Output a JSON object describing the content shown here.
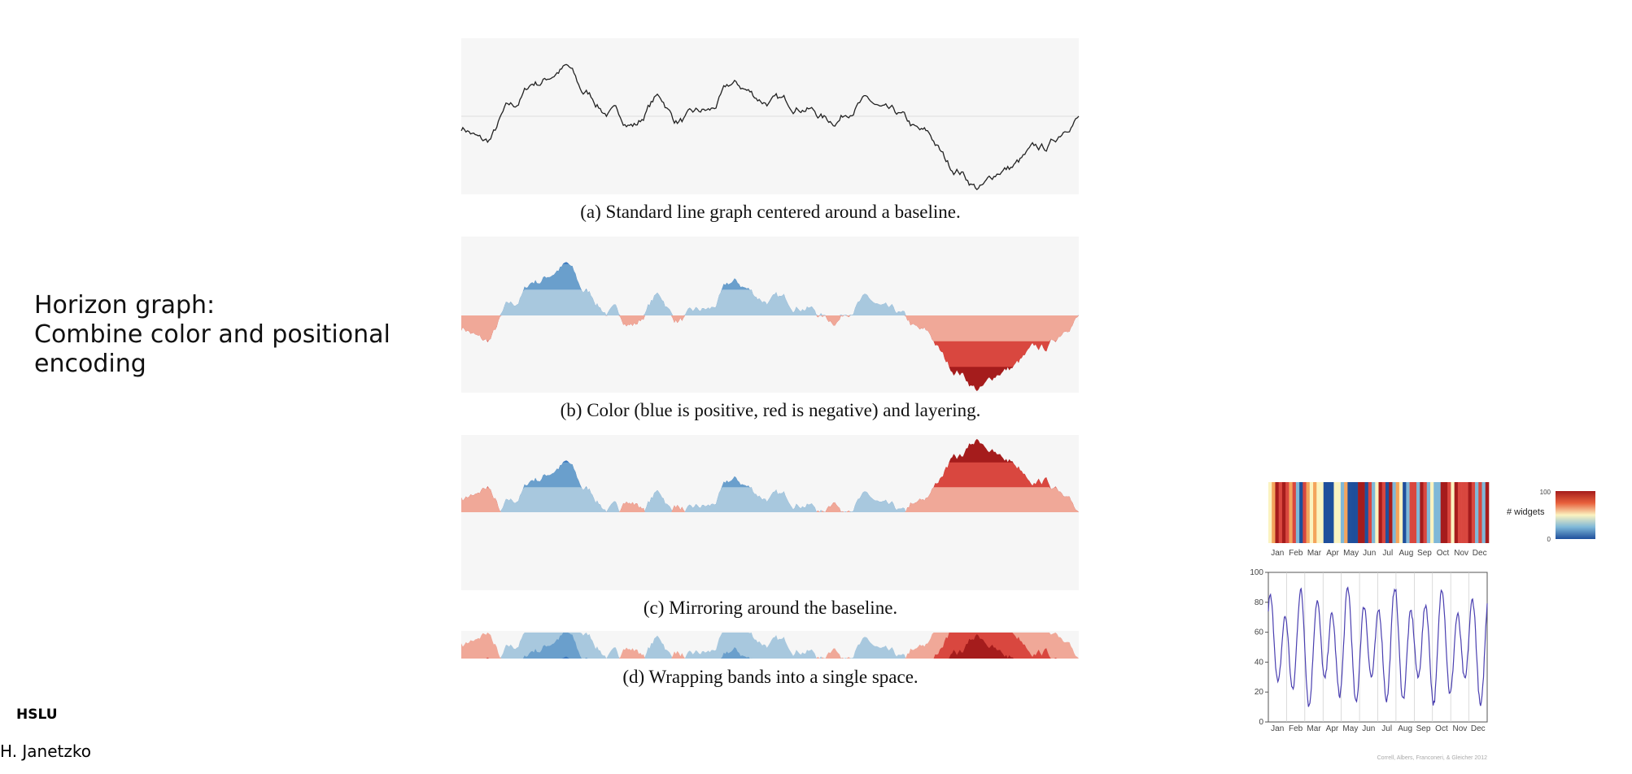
{
  "slide": {
    "text": [
      "Horizon graph:",
      "Combine color and positional",
      "encoding"
    ],
    "footer": {
      "org": "HSLU",
      "author": "H. Janetzko"
    }
  },
  "figure": {
    "captions": [
      "(a)  Standard line graph centered around a baseline.",
      "(b)  Color (blue is positive, red is negative) and layering.",
      "(c)  Mirroring around the baseline.",
      "(d)  Wrapping bands into a single space."
    ]
  },
  "inset": {
    "months": [
      "Jan",
      "Feb",
      "Mar",
      "Apr",
      "May",
      "Jun",
      "Jul",
      "Aug",
      "Sep",
      "Oct",
      "Nov",
      "Dec"
    ],
    "legend_label": "# widgets",
    "legend_max": 100,
    "legend_min": 0,
    "ylim": [
      0,
      100
    ],
    "yticks": [
      0,
      20,
      40,
      60,
      80,
      100
    ],
    "credit": "Correll, Albers, Franconeri, & Gleicher 2012"
  }
}
